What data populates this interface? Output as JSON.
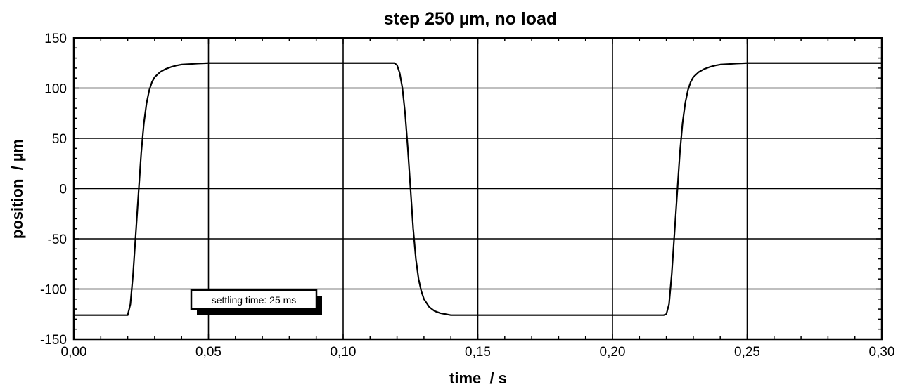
{
  "chart_data": {
    "type": "line",
    "title": "step 250 µm, no load",
    "xlabel": "time  / s",
    "ylabel": "position  / µm",
    "xlim": [
      0,
      0.3
    ],
    "ylim": [
      -150,
      150
    ],
    "x_ticks": [
      "0,00",
      "0,05",
      "0,10",
      "0,15",
      "0,20",
      "0,25",
      "0,30"
    ],
    "y_ticks": [
      "150",
      "100",
      "50",
      "0",
      "-50",
      "-100",
      "-150"
    ],
    "grid": true,
    "annotation": "settling time: 25 ms",
    "series": [
      {
        "color": "#000000",
        "x": [
          0.0,
          0.02,
          0.021,
          0.022,
          0.023,
          0.024,
          0.025,
          0.026,
          0.027,
          0.028,
          0.029,
          0.03,
          0.032,
          0.034,
          0.036,
          0.038,
          0.04,
          0.043,
          0.046,
          0.05,
          0.1,
          0.119,
          0.12,
          0.121,
          0.122,
          0.123,
          0.124,
          0.125,
          0.126,
          0.127,
          0.128,
          0.129,
          0.13,
          0.132,
          0.134,
          0.136,
          0.138,
          0.14,
          0.15,
          0.2,
          0.219,
          0.22,
          0.221,
          0.222,
          0.223,
          0.224,
          0.225,
          0.226,
          0.227,
          0.228,
          0.229,
          0.23,
          0.232,
          0.234,
          0.236,
          0.238,
          0.24,
          0.243,
          0.246,
          0.25,
          0.3
        ],
        "y": [
          -126,
          -126,
          -115,
          -85,
          -45,
          -5,
          35,
          65,
          85,
          98,
          106,
          111,
          116,
          119,
          121,
          122.5,
          123.5,
          124,
          124.5,
          125,
          125,
          125,
          123,
          115,
          100,
          75,
          40,
          0,
          -40,
          -70,
          -90,
          -102,
          -110,
          -118,
          -122,
          -124,
          -125,
          -126,
          -126,
          -126,
          -126,
          -125,
          -115,
          -85,
          -45,
          -5,
          35,
          65,
          85,
          98,
          106,
          111,
          116,
          119,
          121,
          122.5,
          123.5,
          124,
          124.5,
          125,
          125
        ]
      }
    ]
  }
}
